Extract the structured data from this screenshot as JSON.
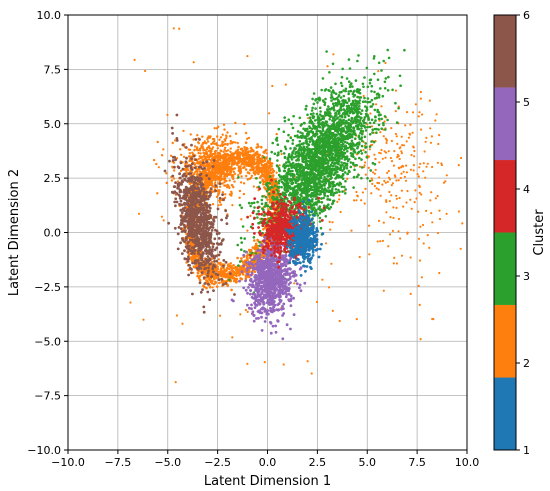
{
  "chart_data": {
    "type": "scatter",
    "xlabel": "Latent Dimension 1",
    "ylabel": "Latent Dimension 2",
    "xlim": [
      -10,
      10
    ],
    "ylim": [
      -10,
      10
    ],
    "xticks": [
      -10.0,
      -7.5,
      -5.0,
      -2.5,
      0.0,
      2.5,
      5.0,
      7.5,
      10.0
    ],
    "yticks": [
      -10.0,
      -7.5,
      -5.0,
      -2.5,
      0.0,
      2.5,
      5.0,
      7.5,
      10.0
    ],
    "xtick_labels": [
      "−10.0",
      "−7.5",
      "−5.0",
      "−2.5",
      "0.0",
      "2.5",
      "5.0",
      "7.5",
      "10.0"
    ],
    "ytick_labels": [
      "−10.0",
      "−7.5",
      "−5.0",
      "−2.5",
      "0.0",
      "2.5",
      "5.0",
      "7.5",
      "10.0"
    ],
    "grid": true,
    "colorbar": {
      "label": "Cluster",
      "range": [
        1,
        6
      ],
      "ticks": [
        1,
        2,
        3,
        4,
        5,
        6
      ],
      "tick_labels": [
        "1",
        "2",
        "3",
        "4",
        "5",
        "6"
      ],
      "bands": [
        {
          "from": 1.0,
          "to": 1.833,
          "color": "#1f77b4"
        },
        {
          "from": 1.833,
          "to": 2.667,
          "color": "#ff7f0e"
        },
        {
          "from": 2.667,
          "to": 3.5,
          "color": "#2ca02c"
        },
        {
          "from": 3.5,
          "to": 4.333,
          "color": "#d62728"
        },
        {
          "from": 4.333,
          "to": 5.167,
          "color": "#9467bd"
        },
        {
          "from": 5.167,
          "to": 6.0,
          "color": "#8c564b"
        }
      ]
    },
    "clusters": [
      {
        "cluster": 1,
        "color": "#1f77b4",
        "center": [
          1.8,
          -0.3
        ],
        "spread": [
          0.35,
          0.55
        ],
        "rotation_deg": 0,
        "approx_extent": {
          "x": [
            1.2,
            2.4
          ],
          "y": [
            -1.1,
            0.5
          ]
        }
      },
      {
        "cluster": 2,
        "color": "#ff7f0e",
        "shape": "ring",
        "center": [
          -1.6,
          0.8
        ],
        "approx_extent": {
          "x": [
            -5.5,
            1.0
          ],
          "y": [
            -3.5,
            6.5
          ]
        },
        "outlier_extent": {
          "x": [
            -9.0,
            10.0
          ],
          "y": [
            -7.0,
            9.7
          ]
        }
      },
      {
        "cluster": 3,
        "color": "#2ca02c",
        "center": [
          2.6,
          3.3
        ],
        "spread": [
          0.8,
          2.0
        ],
        "rotation_deg": -35,
        "approx_extent": {
          "x": [
            0.0,
            5.8
          ],
          "y": [
            0.0,
            6.7
          ]
        }
      },
      {
        "cluster": 4,
        "color": "#d62728",
        "center": [
          0.9,
          0.1
        ],
        "spread": [
          0.6,
          0.6
        ],
        "rotation_deg": 0,
        "approx_extent": {
          "x": [
            0.2,
            1.7
          ],
          "y": [
            -1.2,
            1.2
          ]
        }
      },
      {
        "cluster": 5,
        "color": "#9467bd",
        "center": [
          0.2,
          -2.1
        ],
        "spread": [
          0.55,
          0.85
        ],
        "rotation_deg": -10,
        "approx_extent": {
          "x": [
            -0.9,
            1.3
          ],
          "y": [
            -3.6,
            -0.6
          ]
        }
      },
      {
        "cluster": 6,
        "color": "#8c564b",
        "center": [
          -3.5,
          0.6
        ],
        "spread": [
          0.45,
          1.3
        ],
        "rotation_deg": 10,
        "approx_extent": {
          "x": [
            -4.3,
            -2.6
          ],
          "y": [
            -1.3,
            2.9
          ]
        }
      }
    ]
  }
}
